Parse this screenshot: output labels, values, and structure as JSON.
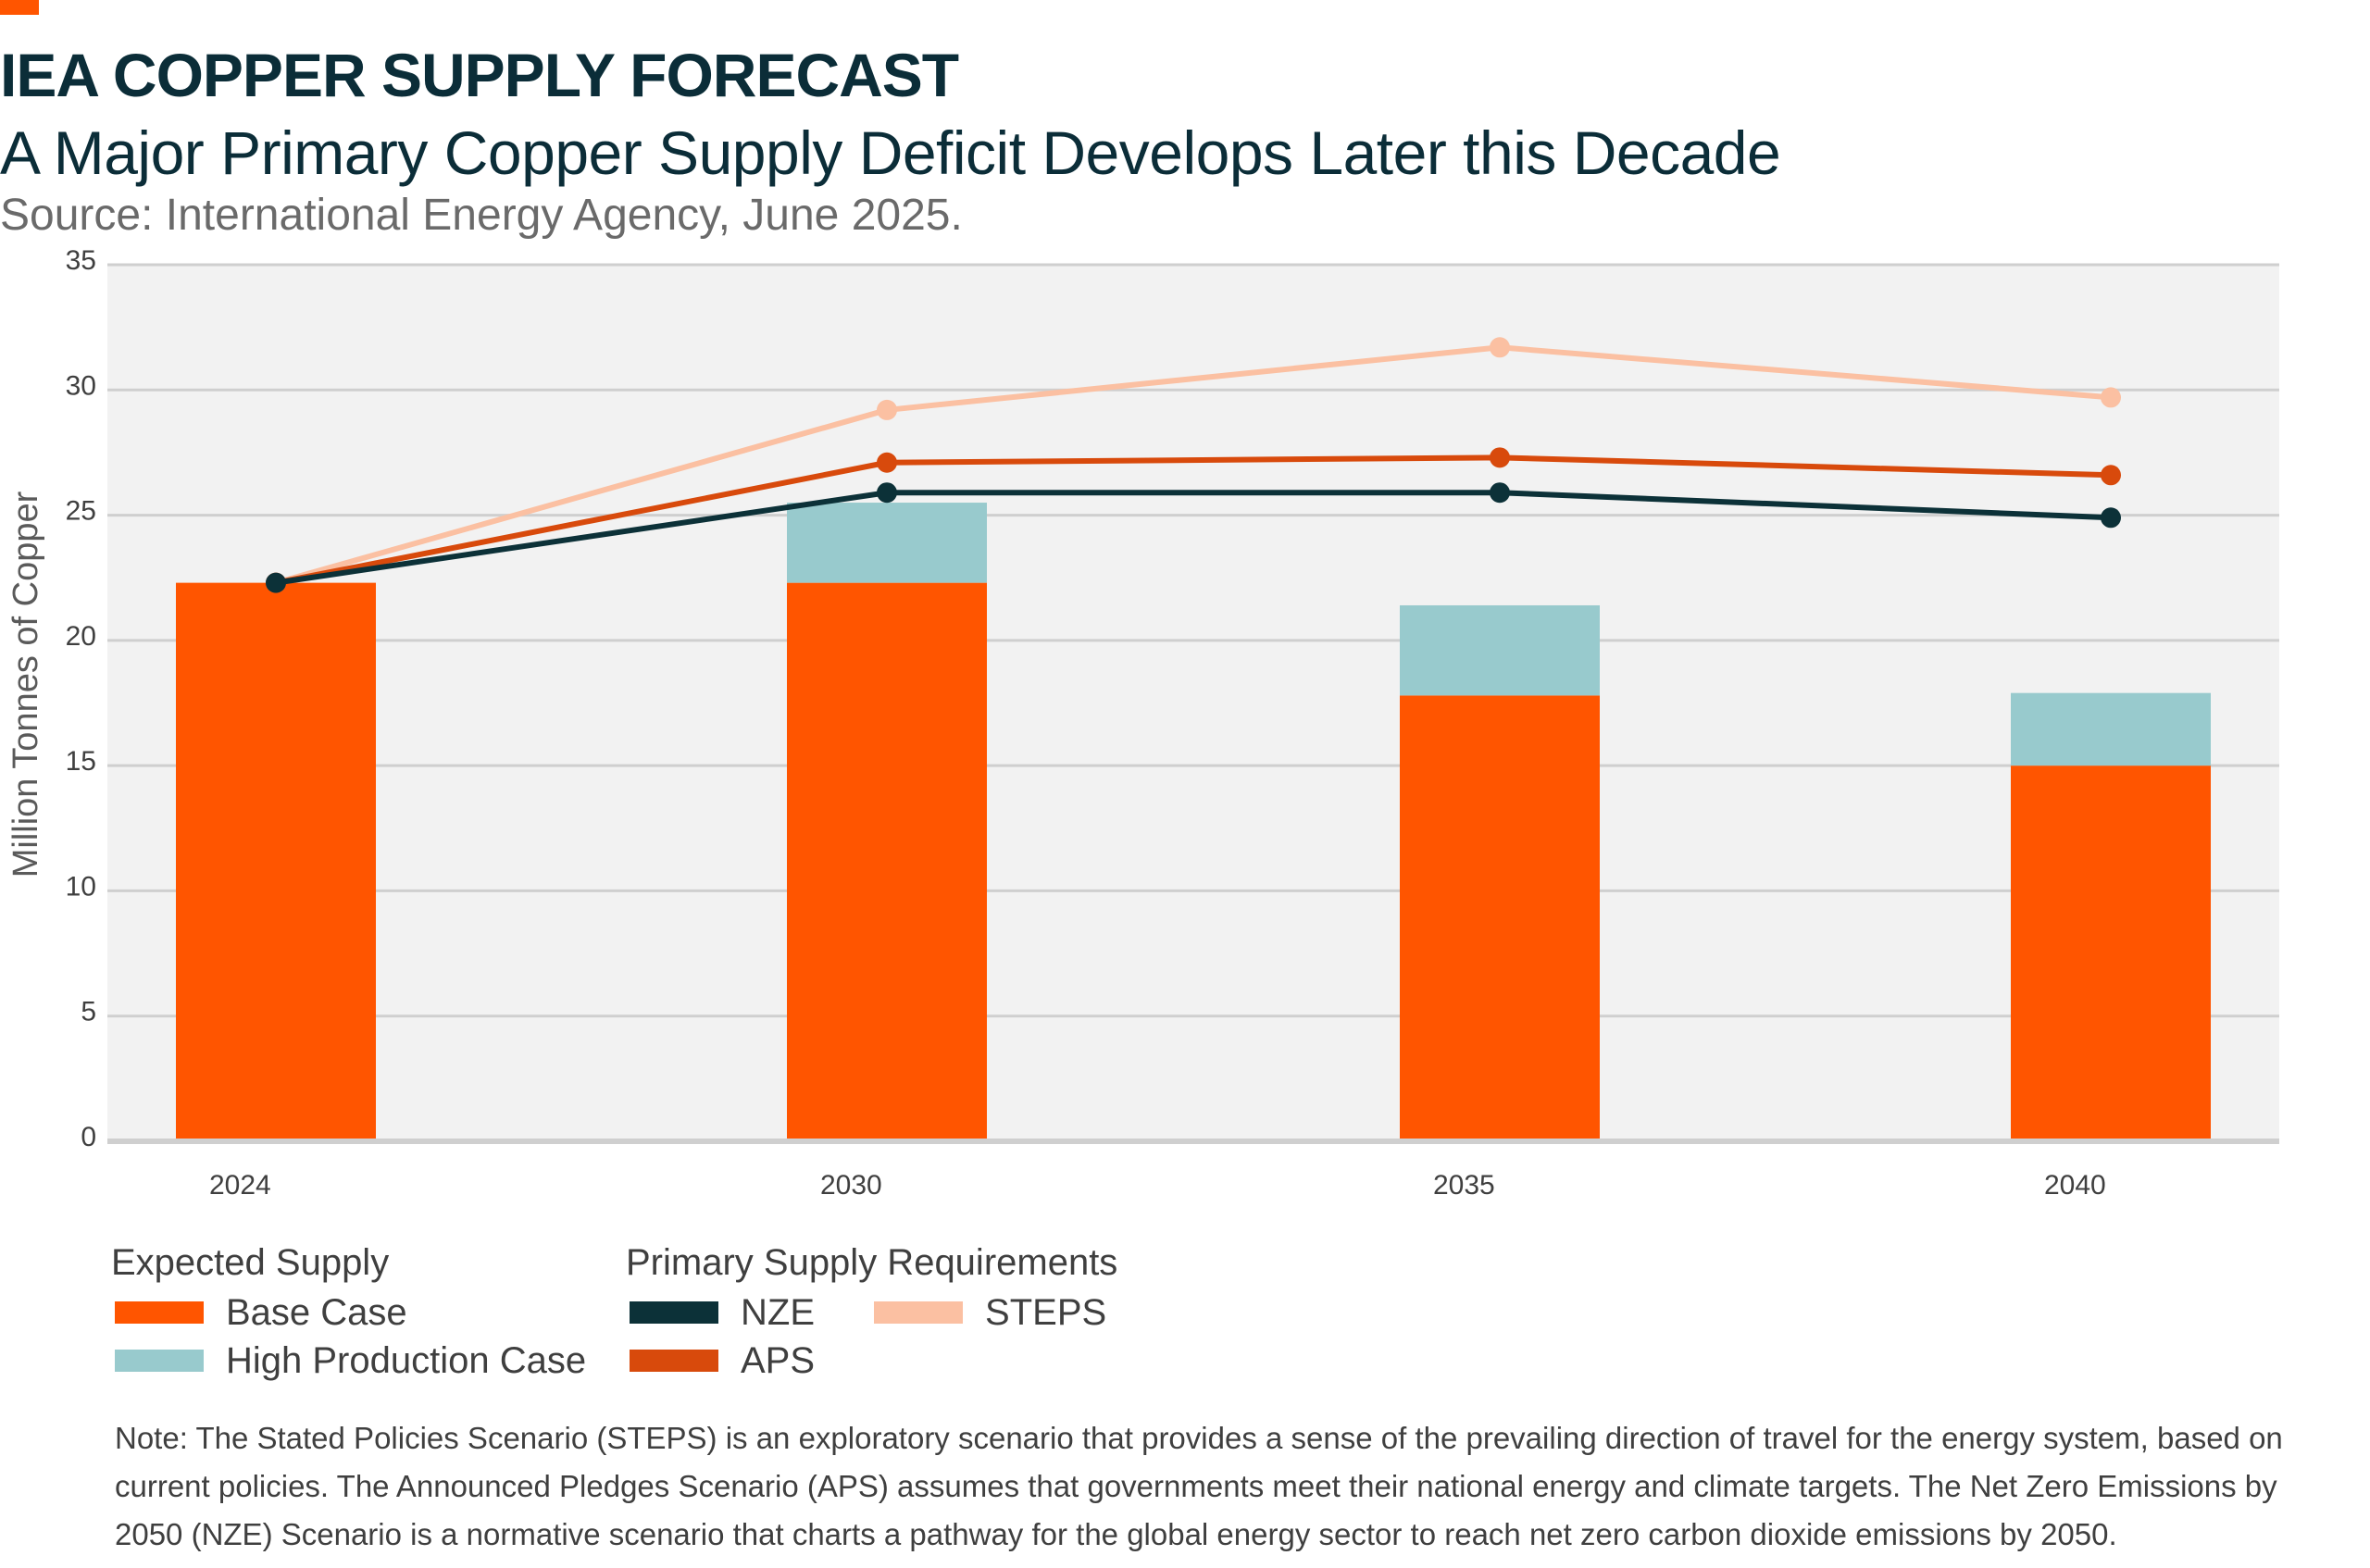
{
  "header": {
    "title": "IEA COPPER SUPPLY FORECAST",
    "subtitle": "A Major Primary Copper Supply Deficit Develops Later this Decade",
    "source": "Source: International Energy Agency, June 2025."
  },
  "colors": {
    "accent": "#ff5500",
    "base_case": "#ff5500",
    "high_production": "#98cacd",
    "nze": "#0c3138",
    "aps": "#d84a0c",
    "steps": "#fbc0a2",
    "plot_bg": "#f2f2f2",
    "grid": "#cfcfcf"
  },
  "chart_data": {
    "type": "bar",
    "categories": [
      "2024",
      "2030",
      "2035",
      "2040"
    ],
    "ylabel": "Million Tonnes of Copper",
    "xlabel": "",
    "ylim": [
      0,
      35
    ],
    "yticks": [
      0,
      5,
      10,
      15,
      20,
      25,
      30,
      35
    ],
    "grid": true,
    "bar_series": [
      {
        "name": "Base Case",
        "values": [
          22.3,
          22.3,
          17.8,
          15.0
        ],
        "color": "#ff5500"
      },
      {
        "name": "High Production Case",
        "values": [
          0,
          3.2,
          3.6,
          2.9
        ],
        "color": "#98cacd"
      }
    ],
    "line_series": [
      {
        "name": "STEPS",
        "values": [
          22.3,
          29.2,
          31.7,
          29.7
        ],
        "color": "#fbc0a2"
      },
      {
        "name": "APS",
        "values": [
          22.3,
          27.1,
          27.3,
          26.6
        ],
        "color": "#d84a0c"
      },
      {
        "name": "NZE",
        "values": [
          22.3,
          25.9,
          25.9,
          24.9
        ],
        "color": "#0c3138"
      }
    ]
  },
  "legend": {
    "expected_title": "Expected Supply",
    "base_case": "Base Case",
    "high_production": "High Production Case",
    "requirements_title": "Primary Supply Requirements",
    "nze": "NZE",
    "aps": "APS",
    "steps": "STEPS"
  },
  "note": "Note: The Stated Policies Scenario (STEPS) is an exploratory scenario that provides a sense of the prevailing direction of travel for the energy system, based on current policies. The Announced Pledges Scenario (APS) assumes that governments meet their national energy and climate targets. The Net Zero Emissions by 2050 (NZE) Scenario is a normative scenario that charts a pathway for the global energy sector to reach net zero carbon dioxide emissions by 2050."
}
